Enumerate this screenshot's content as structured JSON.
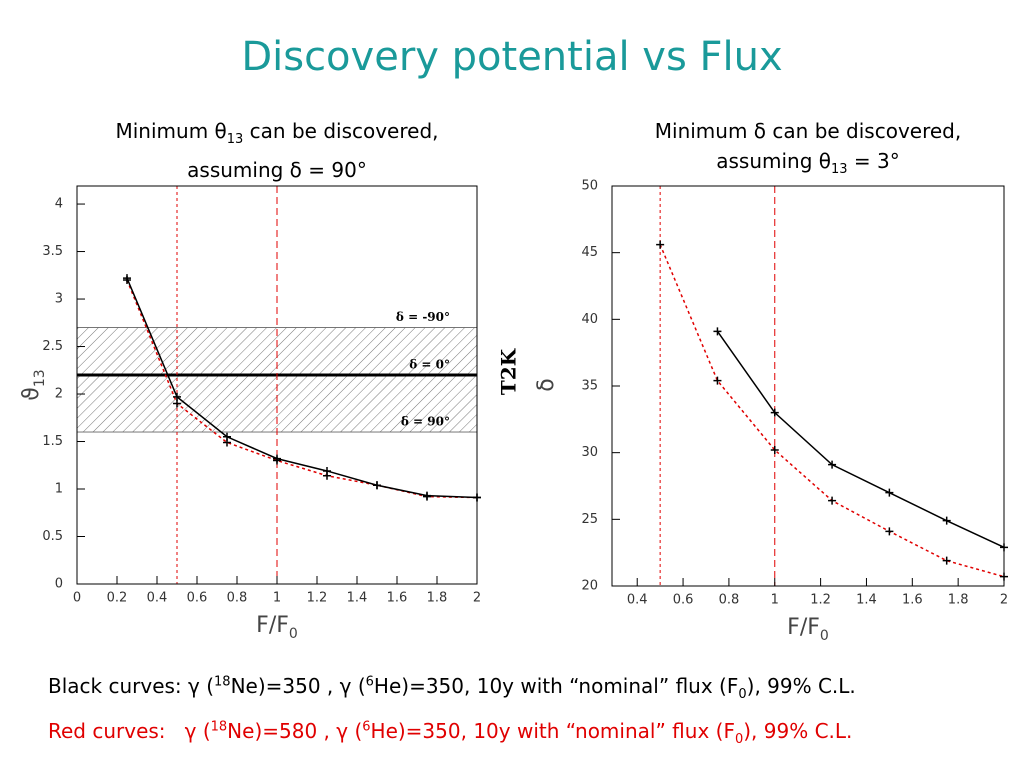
{
  "title": "Discovery potential vs Flux",
  "chart_data": [
    {
      "type": "line",
      "subtitle": [
        [
          {
            "text": "Minimum θ"
          },
          {
            "text": "13",
            "shift": "sub"
          },
          {
            "text": " can be discovered,"
          }
        ],
        [
          {
            "text": "assuming δ = 90°"
          }
        ]
      ],
      "xlabel": [
        {
          "text": "F/F"
        },
        {
          "text": "0",
          "shift": "sub"
        }
      ],
      "ylabel": [
        {
          "text": "ϑ"
        },
        {
          "text": "13",
          "shift": "sub"
        }
      ],
      "x": [
        0.25,
        0.5,
        0.75,
        1,
        1.25,
        1.5,
        1.75,
        2
      ],
      "series": [
        {
          "color": "#e00000",
          "dash": "dotted",
          "values": [
            3.2,
            1.9,
            1.49,
            1.3,
            1.14,
            1.04,
            0.92,
            0.91
          ]
        },
        {
          "color": "#000000",
          "dash": "solid",
          "values": [
            3.22,
            1.97,
            1.55,
            1.32,
            1.19,
            1.04,
            0.93,
            0.91
          ]
        }
      ],
      "xlim": [
        0,
        2
      ],
      "xticks": [
        0,
        0.2,
        0.4,
        0.6,
        0.8,
        1,
        1.2,
        1.4,
        1.6,
        1.8,
        2
      ],
      "ylim": [
        0,
        4.19
      ],
      "yticks": [
        0,
        0.5,
        1,
        1.5,
        2,
        2.5,
        3,
        3.5,
        4
      ],
      "vlines": [
        {
          "value": 0.5,
          "style": "dotted"
        },
        {
          "value": 1,
          "style": "dashed"
        },
        {
          "value": 2,
          "style": "dotted"
        }
      ],
      "band": [
        1.6,
        2.7
      ],
      "hline": 2.2,
      "annotations": [
        "δ = -90°",
        "δ = 0°",
        "δ = 90°"
      ]
    },
    {
      "type": "line",
      "subtitle": [
        [
          {
            "text": "Minimum δ can be discovered,"
          }
        ],
        [
          {
            "text": "assuming θ"
          },
          {
            "text": "13",
            "shift": "sub"
          },
          {
            "text": " = 3°"
          }
        ]
      ],
      "xlabel": [
        {
          "text": "F/F"
        },
        {
          "text": "0",
          "shift": "sub"
        }
      ],
      "ylabel": [
        {
          "text": "δ"
        }
      ],
      "side_label": "T2K",
      "x": [
        0.5,
        0.75,
        1,
        1.25,
        1.5,
        1.75,
        2
      ],
      "series": [
        {
          "color": "#e00000",
          "dash": "dotted",
          "values": [
            45.6,
            35.4,
            30.2,
            26.4,
            24.1,
            21.9,
            20.7
          ]
        },
        {
          "color": "#000000",
          "dash": "solid",
          "values": [
            null,
            39.1,
            33,
            29.1,
            27,
            24.9,
            22.9
          ]
        }
      ],
      "xlim": [
        0.29,
        2
      ],
      "xticks": [
        0.4,
        0.6,
        0.8,
        1,
        1.2,
        1.4,
        1.6,
        1.8,
        2
      ],
      "ylim": [
        20,
        50
      ],
      "yticks": [
        20,
        25,
        30,
        35,
        40,
        45,
        50
      ],
      "vlines": [
        {
          "value": 0.5,
          "style": "dotted"
        },
        {
          "value": 1,
          "style": "dashed"
        },
        {
          "value": 2,
          "style": "dotted"
        }
      ]
    }
  ],
  "notes": [
    {
      "color": "#000000",
      "parts": [
        {
          "text": "Black curves: γ ("
        },
        {
          "text": "18",
          "shift": "sup"
        },
        {
          "text": "Ne)=350 , γ ("
        },
        {
          "text": "6",
          "shift": "sup"
        },
        {
          "text": "He)=350, 10y with “nominal” flux (F"
        },
        {
          "text": "0",
          "shift": "sub"
        },
        {
          "text": "), 99% C.L."
        }
      ]
    },
    {
      "color": "#e00000",
      "parts": [
        {
          "text": "Red curves:   γ ("
        },
        {
          "text": "18",
          "shift": "sup"
        },
        {
          "text": "Ne)=580 , γ ("
        },
        {
          "text": "6",
          "shift": "sup"
        },
        {
          "text": "He)=350, 10y with “nominal” flux (F"
        },
        {
          "text": "0",
          "shift": "sub"
        },
        {
          "text": "), 99% C.L."
        }
      ]
    }
  ]
}
